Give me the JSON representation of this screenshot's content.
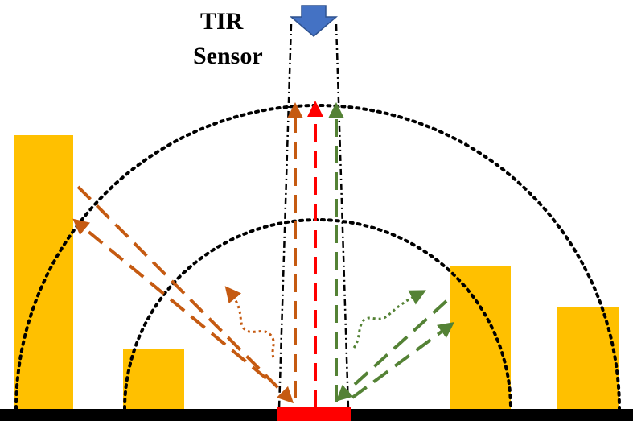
{
  "labels": {
    "sensor_line1": "TIR",
    "sensor_line2": "Sensor"
  },
  "colors": {
    "building": "#FFC000",
    "ground": "#000000",
    "target_surface": "#FF0000",
    "sensor_icon": "#4472C4",
    "direct_emission": "#FF0000",
    "left_reflected": "#C55A11",
    "right_reflected": "#548235",
    "hemisphere_outline": "#000000",
    "view_cone": "#000000"
  },
  "icons": {
    "sensor": "down-arrow-icon"
  }
}
